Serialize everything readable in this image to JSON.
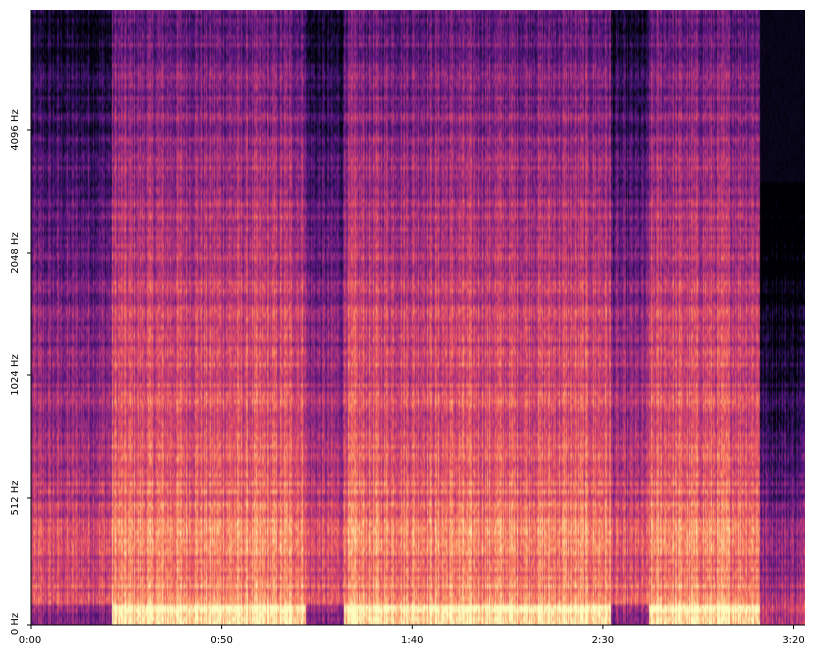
{
  "chart_data": {
    "type": "heatmap",
    "kind": "spectrogram",
    "colormap": "magma",
    "title": "",
    "xlabel": "",
    "ylabel": "",
    "x_axis": {
      "unit": "time",
      "range_seconds": [
        0,
        203
      ],
      "ticks": [
        {
          "value": 0,
          "label": "0:00"
        },
        {
          "value": 50,
          "label": "0:50"
        },
        {
          "value": 100,
          "label": "1:40"
        },
        {
          "value": 150,
          "label": "2:30"
        },
        {
          "value": 200,
          "label": "3:20"
        }
      ]
    },
    "y_axis": {
      "unit": "Hz",
      "scale": "log",
      "ticks": [
        {
          "value": 0,
          "label": "0 Hz"
        },
        {
          "value": 512,
          "label": "512 Hz"
        },
        {
          "value": 1024,
          "label": "1024 Hz"
        },
        {
          "value": 2048,
          "label": "2048 Hz"
        },
        {
          "value": 4096,
          "label": "4096 Hz"
        }
      ]
    },
    "quiet_segments_seconds": [
      [
        0,
        21
      ],
      [
        72,
        82
      ],
      [
        152,
        162
      ],
      [
        191,
        203
      ]
    ],
    "loud_low_frequency_segments_seconds": [
      [
        21,
        72
      ],
      [
        82,
        152
      ],
      [
        162,
        191
      ]
    ],
    "grid": false,
    "legend": "none"
  }
}
